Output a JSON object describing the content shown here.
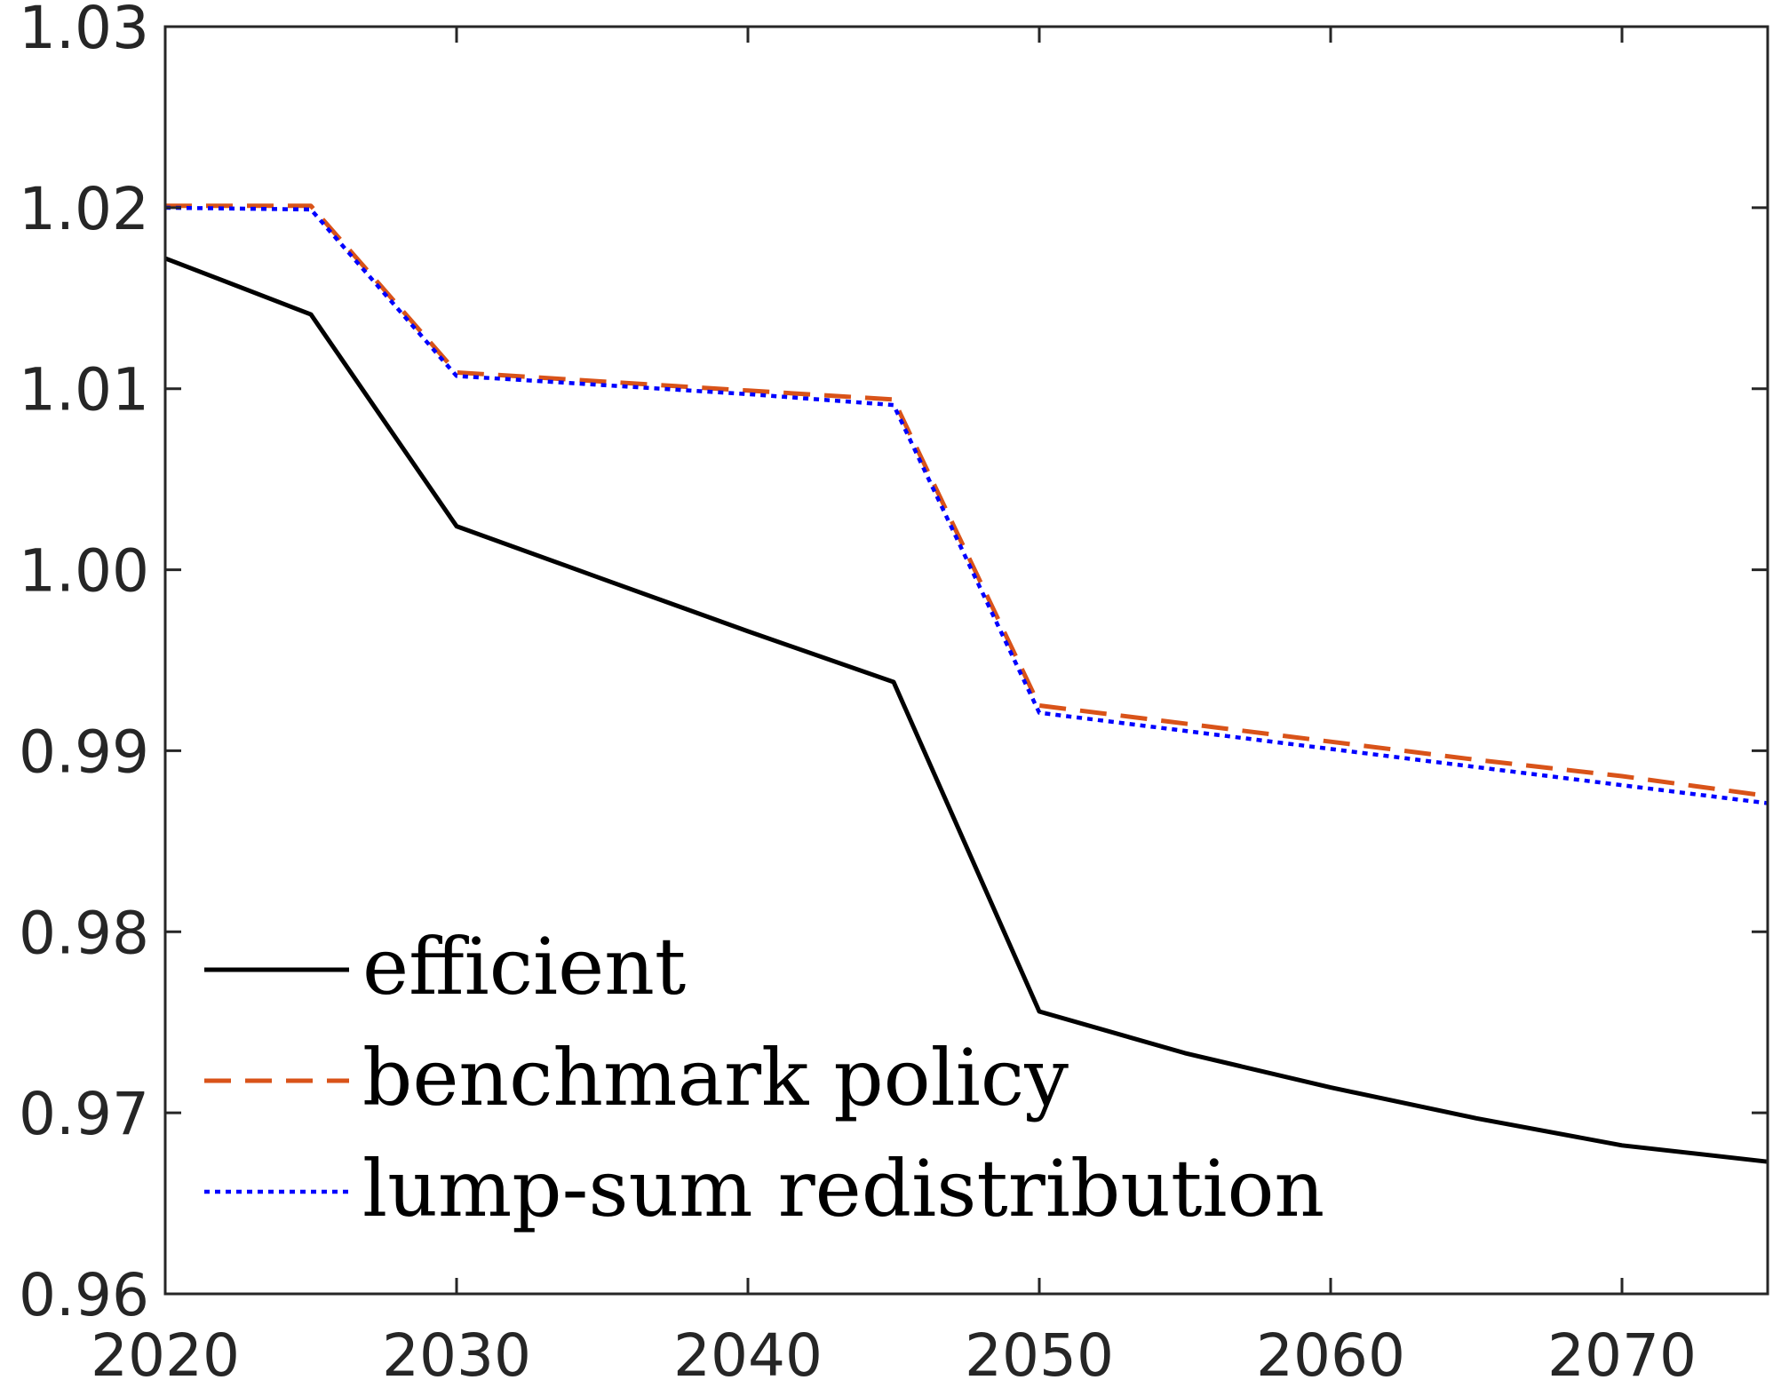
{
  "chart_data": {
    "type": "line",
    "title": "",
    "xlabel": "",
    "ylabel": "",
    "xlim": [
      2020,
      2075
    ],
    "ylim": [
      0.96,
      1.03
    ],
    "xticks": [
      2020,
      2030,
      2040,
      2050,
      2060,
      2070
    ],
    "xtick_labels": [
      "2020",
      "2030",
      "2040",
      "2050",
      "2060",
      "2070"
    ],
    "yticks": [
      0.96,
      0.97,
      0.98,
      0.99,
      1.0,
      1.01,
      1.02,
      1.03
    ],
    "ytick_labels": [
      "0.96",
      "0.97",
      "0.98",
      "0.99",
      "1.00",
      "1.01",
      "1.02",
      "1.03"
    ],
    "grid": false,
    "legend_position": "bottom-left",
    "x": [
      2020,
      2025,
      2030,
      2035,
      2040,
      2045,
      2050,
      2055,
      2060,
      2065,
      2070,
      2075
    ],
    "series": [
      {
        "name": "efficient",
        "color": "#000000",
        "style": "solid",
        "values": [
          1.0172,
          1.0141,
          1.0024,
          0.9995,
          0.9966,
          0.9938,
          0.9756,
          0.9733,
          0.9714,
          0.9697,
          0.9682,
          0.9673
        ]
      },
      {
        "name": "benchmark policy",
        "color": "#D95319",
        "style": "dashed",
        "values": [
          1.0201,
          1.0201,
          1.0109,
          1.0104,
          1.0099,
          1.0094,
          0.9925,
          0.9915,
          0.9905,
          0.9895,
          0.9886,
          0.9875
        ]
      },
      {
        "name": "lump-sum redistribution",
        "color": "#0000FF",
        "style": "dotted",
        "values": [
          1.02,
          1.0199,
          1.0107,
          1.0102,
          1.0097,
          1.0091,
          0.9921,
          0.9911,
          0.9901,
          0.9891,
          0.9881,
          0.9871
        ]
      }
    ]
  }
}
